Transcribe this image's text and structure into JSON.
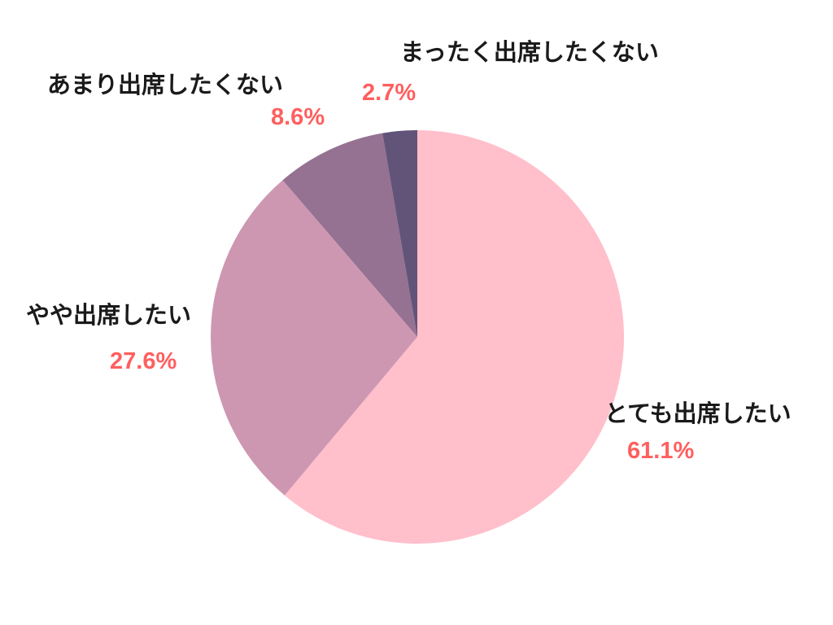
{
  "chart_data": {
    "type": "pie",
    "start_angle_deg": 0,
    "direction": "clockwise",
    "label_color": "#ff5f5f",
    "slices": [
      {
        "label": "とても出席したい",
        "value": 61.1,
        "value_label": "61.1%",
        "color": "#ffbfcb"
      },
      {
        "label": "やや出席したい",
        "value": 27.6,
        "value_label": "27.6%",
        "color": "#ce97b1"
      },
      {
        "label": "あまり出席したくない",
        "value": 8.6,
        "value_label": "8.6%",
        "color": "#957292"
      },
      {
        "label": "まったく出席したくない",
        "value": 2.7,
        "value_label": "2.7%",
        "color": "#625479"
      }
    ]
  }
}
